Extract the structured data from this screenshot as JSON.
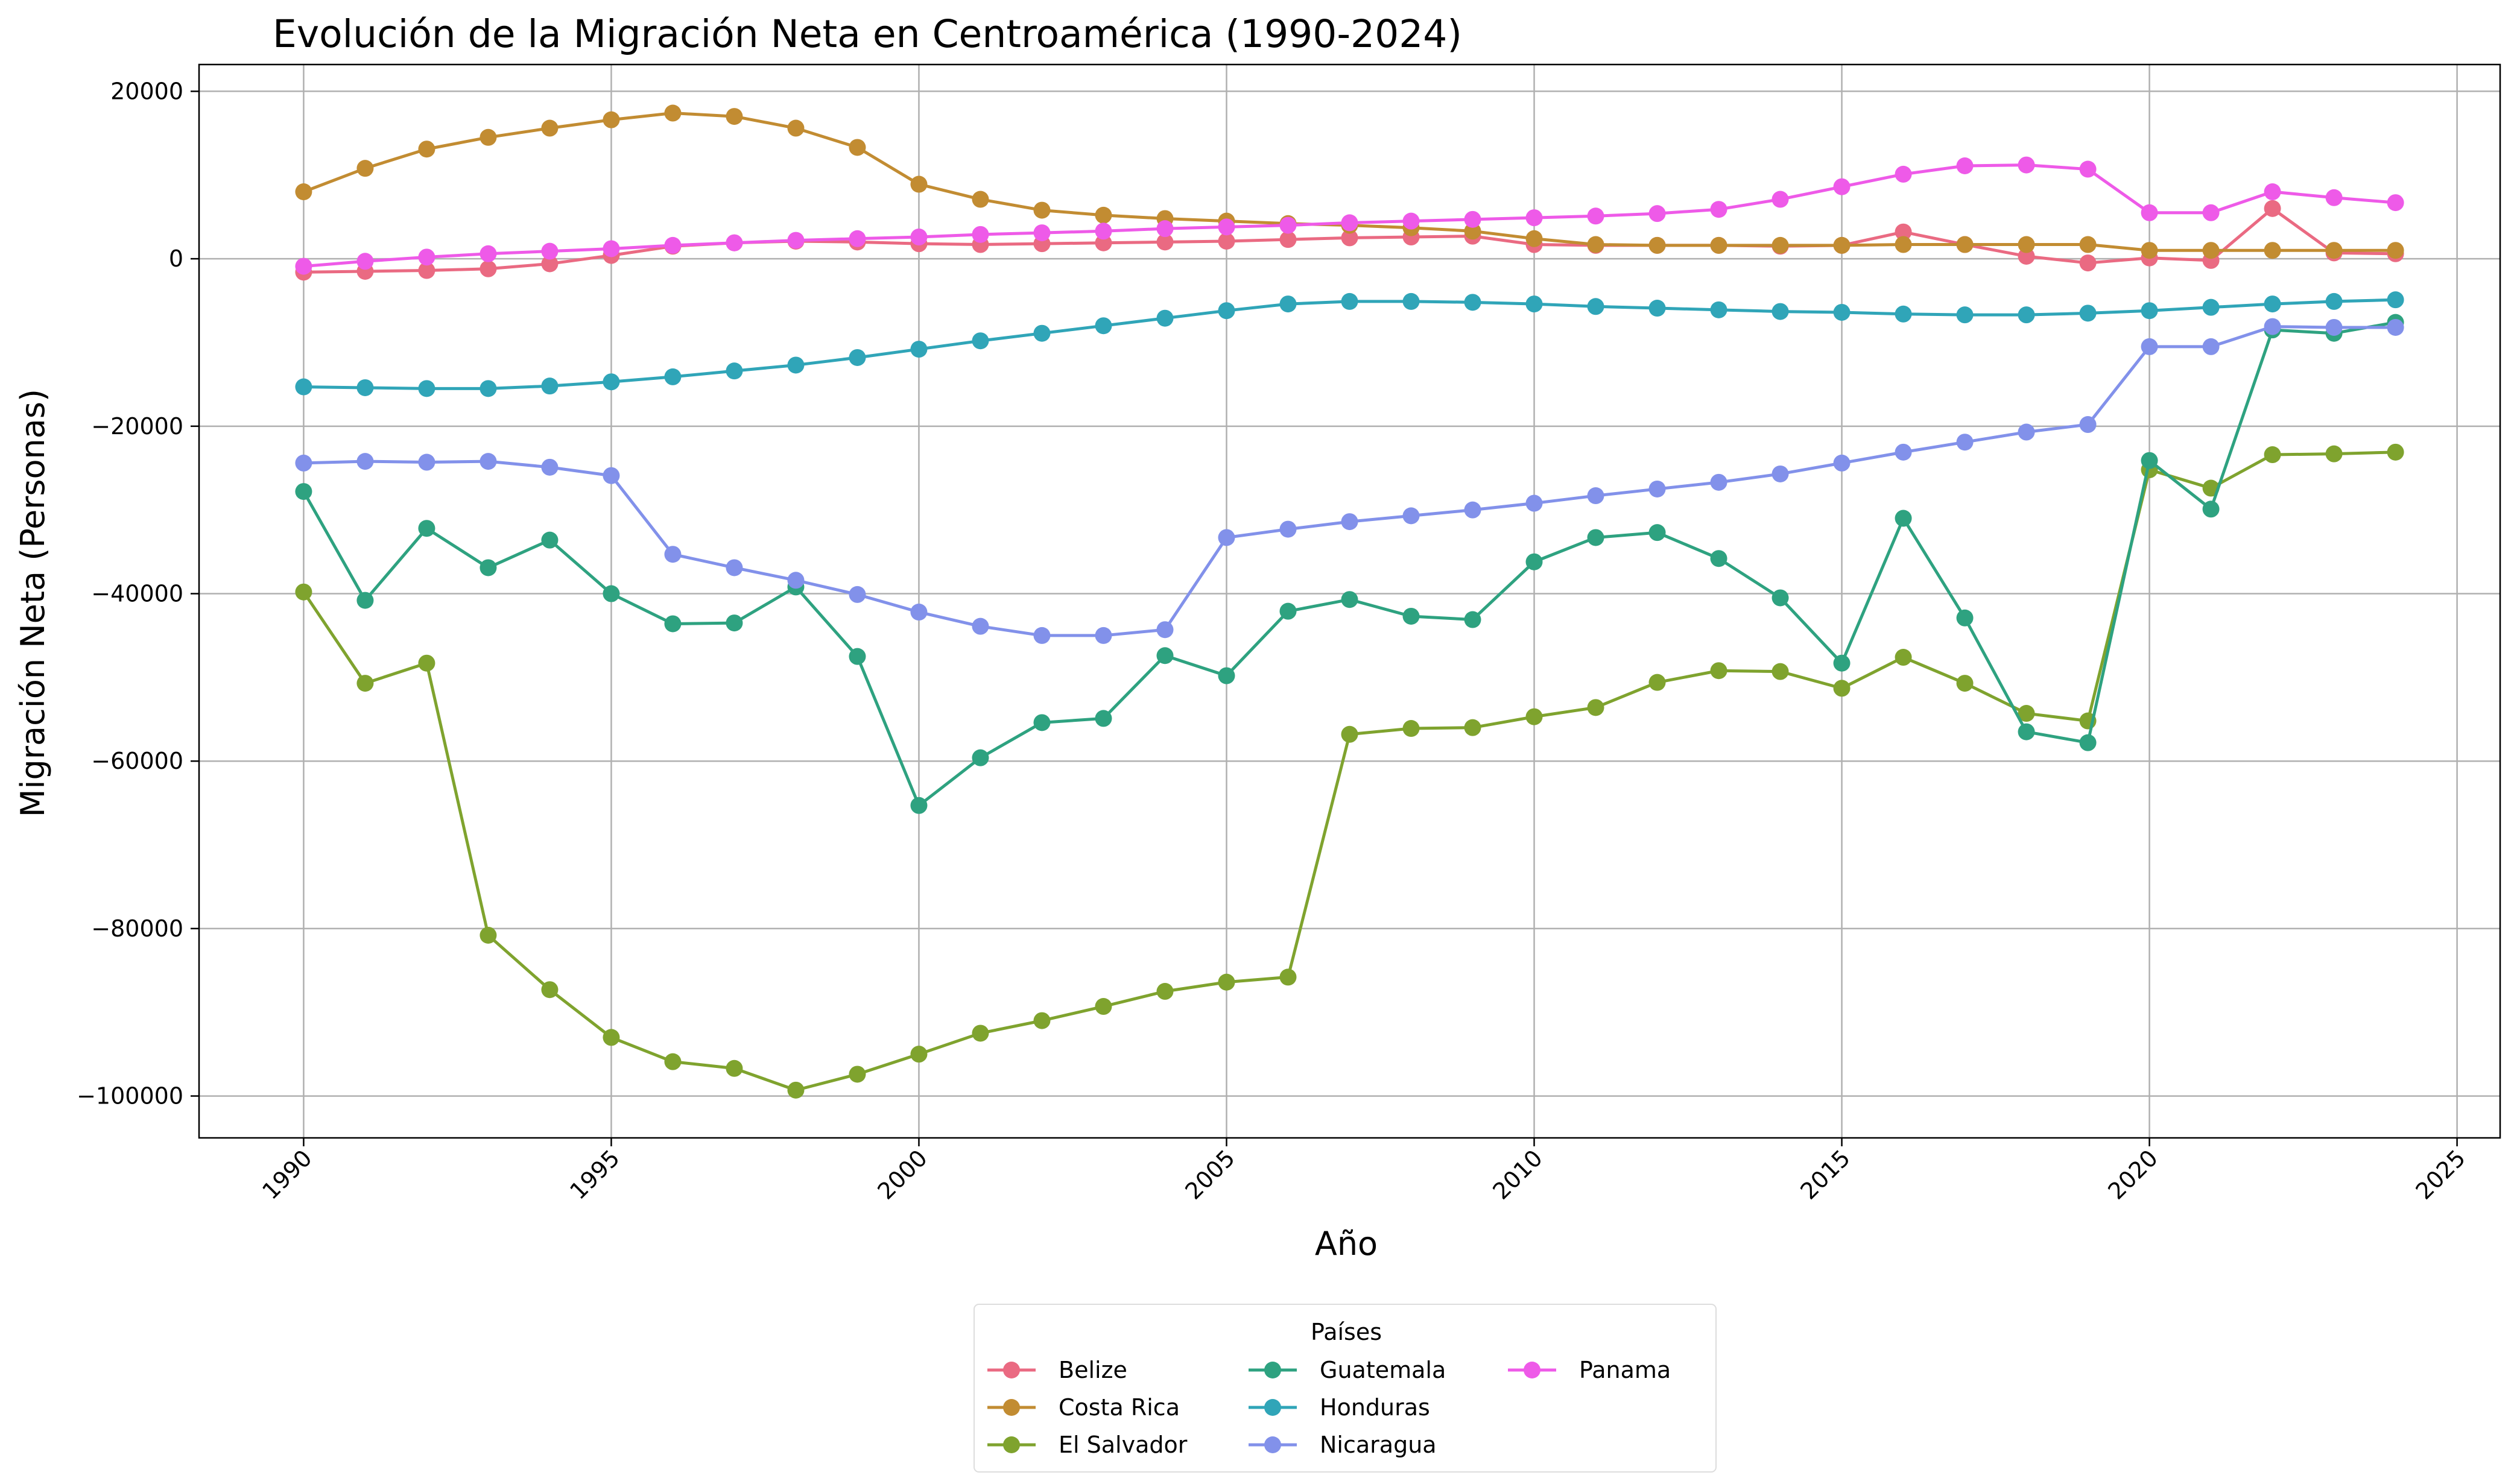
{
  "chart_data": {
    "type": "line",
    "title": "Evolución de la Migración Neta en Centroamérica (1990-2024)",
    "xlabel": "Año",
    "ylabel": "Migración Neta (Personas)",
    "xlim": [
      1988.3,
      2025.7
    ],
    "ylim": [
      -105000,
      23200
    ],
    "xticks": [
      1990,
      1995,
      2000,
      2005,
      2010,
      2015,
      2020,
      2025
    ],
    "yticks": [
      20000,
      0,
      -20000,
      -40000,
      -60000,
      -80000,
      -100000
    ],
    "ytick_labels": [
      "20000",
      "0",
      "−20000",
      "−40000",
      "−60000",
      "−80000",
      "−100000"
    ],
    "grid": true,
    "legend_title": "Países",
    "legend_position": "bottom-center",
    "x": [
      1990,
      1991,
      1992,
      1993,
      1994,
      1995,
      1996,
      1997,
      1998,
      1999,
      2000,
      2001,
      2002,
      2003,
      2004,
      2005,
      2006,
      2007,
      2008,
      2009,
      2010,
      2011,
      2012,
      2013,
      2014,
      2015,
      2016,
      2017,
      2018,
      2019,
      2020,
      2021,
      2022,
      2023,
      2024
    ],
    "series": [
      {
        "name": "Belize",
        "color": "#ea6a82",
        "values": [
          -1600,
          -1500,
          -1400,
          -1200,
          -600,
          400,
          1500,
          1900,
          2100,
          2000,
          1800,
          1700,
          1800,
          1900,
          2000,
          2100,
          2300,
          2500,
          2600,
          2700,
          1700,
          1600,
          1600,
          1600,
          1500,
          1600,
          3200,
          1700,
          300,
          -500,
          100,
          -200,
          6000,
          700,
          600
        ]
      },
      {
        "name": "Costa Rica",
        "color": "#c28c32",
        "values": [
          8000,
          10800,
          13100,
          14500,
          15600,
          16600,
          17400,
          17000,
          15600,
          13300,
          8900,
          7100,
          5800,
          5200,
          4800,
          4500,
          4200,
          4000,
          3700,
          3300,
          2400,
          1700,
          1600,
          1600,
          1600,
          1600,
          1700,
          1700,
          1700,
          1700,
          1000,
          1000,
          1000,
          1000,
          1000
        ]
      },
      {
        "name": "El Salvador",
        "color": "#7fa32e",
        "values": [
          -39800,
          -50700,
          -48300,
          -80800,
          -87300,
          -93000,
          -95900,
          -96700,
          -99300,
          -97400,
          -95000,
          -92500,
          -91000,
          -89300,
          -87500,
          -86400,
          -85800,
          -56800,
          -56100,
          -56000,
          -54700,
          -53600,
          -50600,
          -49200,
          -49300,
          -51300,
          -47600,
          -50700,
          -54300,
          -55200,
          -25200,
          -27400,
          -23400,
          -23300,
          -23100
        ]
      },
      {
        "name": "Guatemala",
        "color": "#2ea280",
        "values": [
          -27800,
          -40800,
          -32200,
          -36900,
          -33600,
          -40000,
          -43600,
          -43500,
          -39200,
          -47500,
          -65300,
          -59600,
          -55400,
          -54900,
          -47400,
          -49800,
          -42100,
          -40700,
          -42700,
          -43100,
          -36200,
          -33300,
          -32700,
          -35800,
          -40500,
          -48300,
          -31000,
          -42900,
          -56500,
          -57800,
          -24100,
          -29900,
          -8500,
          -8900,
          -7600
        ]
      },
      {
        "name": "Honduras",
        "color": "#30a5b8",
        "values": [
          -15300,
          -15400,
          -15500,
          -15500,
          -15200,
          -14700,
          -14100,
          -13400,
          -12700,
          -11800,
          -10800,
          -9800,
          -8900,
          -8000,
          -7100,
          -6200,
          -5400,
          -5100,
          -5100,
          -5200,
          -5400,
          -5700,
          -5900,
          -6100,
          -6300,
          -6400,
          -6600,
          -6700,
          -6700,
          -6500,
          -6200,
          -5800,
          -5400,
          -5100,
          -4900
        ]
      },
      {
        "name": "Nicaragua",
        "color": "#8291ea",
        "values": [
          -24400,
          -24200,
          -24300,
          -24200,
          -24900,
          -25900,
          -35300,
          -36900,
          -38400,
          -40100,
          -42200,
          -43900,
          -45000,
          -45000,
          -44300,
          -33300,
          -32300,
          -31400,
          -30700,
          -30000,
          -29200,
          -28300,
          -27500,
          -26700,
          -25700,
          -24400,
          -23100,
          -21900,
          -20700,
          -19800,
          -10500,
          -10500,
          -8100,
          -8200,
          -8200
        ]
      },
      {
        "name": "Panama",
        "color": "#ee5ae8",
        "values": [
          -900,
          -300,
          200,
          600,
          900,
          1200,
          1600,
          1900,
          2200,
          2400,
          2600,
          2900,
          3100,
          3300,
          3600,
          3800,
          4000,
          4300,
          4500,
          4700,
          4900,
          5100,
          5400,
          5900,
          7100,
          8600,
          10100,
          11100,
          11200,
          10700,
          5500,
          5500,
          8000,
          7300,
          6700
        ]
      }
    ]
  }
}
